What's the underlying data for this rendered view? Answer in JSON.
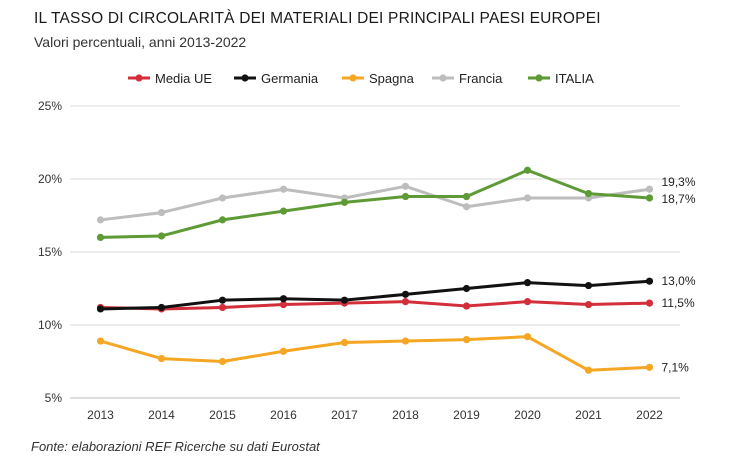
{
  "header": {
    "title": "IL TASSO DI CIRCOLARITÀ DEI MATERIALI DEI PRINCIPALI PAESI EUROPEI",
    "subtitle": "Valori percentuali, anni 2013-2022"
  },
  "footer": {
    "source": "Fonte: elaborazioni REF Ricerche su dati Eurostat"
  },
  "chart_data": {
    "type": "line",
    "x": [
      "2013",
      "2014",
      "2015",
      "2016",
      "2017",
      "2018",
      "2019",
      "2020",
      "2021",
      "2022"
    ],
    "ylim": [
      5,
      25
    ],
    "yticks": [
      5,
      10,
      15,
      20,
      25
    ],
    "ytick_labels": [
      "5%",
      "10%",
      "15%",
      "20%",
      "25%"
    ],
    "grid": "horizontal",
    "legend": "top",
    "series": [
      {
        "name": "Media UE",
        "color": "#d32f3a",
        "values": [
          11.2,
          11.1,
          11.2,
          11.4,
          11.5,
          11.6,
          11.3,
          11.6,
          11.4,
          11.5
        ],
        "end_label": "11,5%"
      },
      {
        "name": "Germania",
        "color": "#111111",
        "values": [
          11.1,
          11.2,
          11.7,
          11.8,
          11.7,
          12.1,
          12.5,
          12.9,
          12.7,
          13.0
        ],
        "end_label": "13,0%"
      },
      {
        "name": "Spagna",
        "color": "#f5a623",
        "values": [
          8.9,
          7.7,
          7.5,
          8.2,
          8.8,
          8.9,
          9.0,
          9.2,
          6.9,
          7.1
        ],
        "end_label": "7,1%"
      },
      {
        "name": "Francia",
        "color": "#bdbdbd",
        "values": [
          17.2,
          17.7,
          18.7,
          19.3,
          18.7,
          19.5,
          18.1,
          18.7,
          18.7,
          19.3
        ],
        "end_label": "19,3%"
      },
      {
        "name": "ITALIA",
        "color": "#5e9a36",
        "values": [
          16.0,
          16.1,
          17.2,
          17.8,
          18.4,
          18.8,
          18.8,
          20.6,
          19.0,
          18.7
        ],
        "end_label": "18,7%"
      }
    ]
  }
}
